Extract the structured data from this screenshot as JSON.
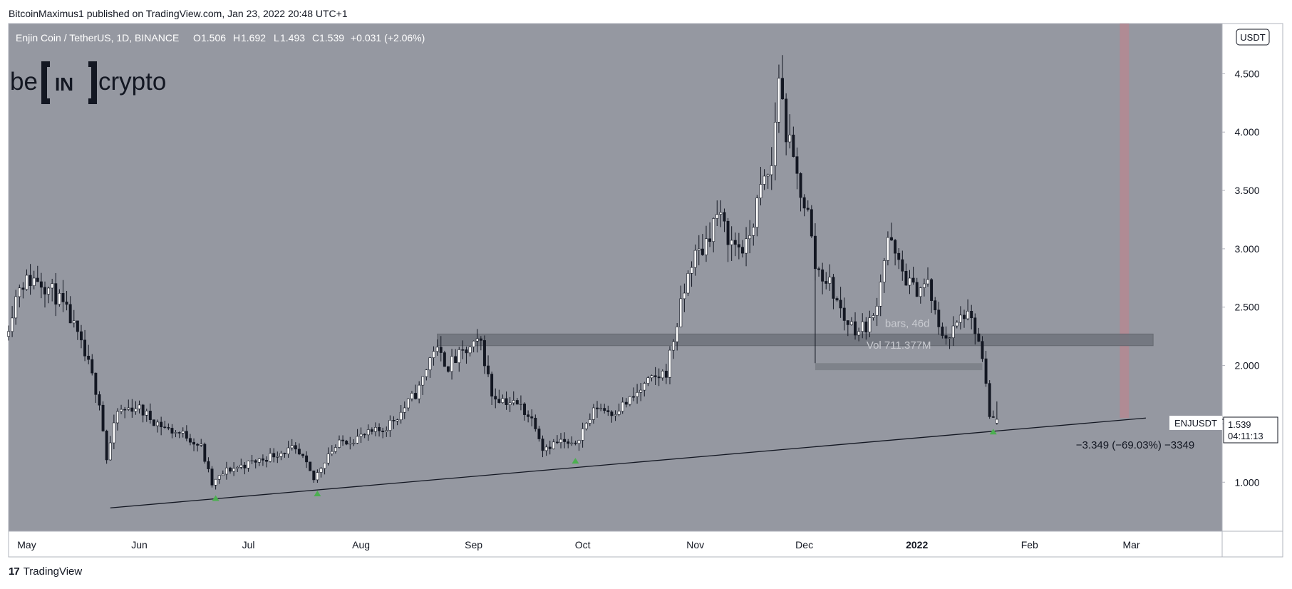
{
  "header": {
    "published_by": "BitcoinMaximus1 published on TradingView.com, Jan 23, 2022 20:48 UTC+1"
  },
  "footer": {
    "brand_icon": "tradingview-icon",
    "brand": "TradingView"
  },
  "colors": {
    "plot_bg": "#9598a1",
    "candle_up": "#ffffff",
    "candle_down": "#131722",
    "wick": "#131722",
    "zone": "#6f737c",
    "target_bar": "#b28a92",
    "marker": "#4caf50"
  },
  "chart_data": {
    "type": "candlestick",
    "symbol_line": "Enjin Coin / TetherUS, 1D, BINANCE",
    "ohlc_readout": {
      "o_label": "O",
      "o": "1.506",
      "h_label": "H",
      "h": "1.692",
      "l_label": "L",
      "l": "1.493",
      "c_label": "C",
      "c": "1.539",
      "change": "+0.031 (+2.06%)"
    },
    "watermark": {
      "left": "be",
      "mid": "IN",
      "right": "crypto"
    },
    "currency_label": "USDT",
    "y_ticks": [
      "1.000",
      "1.500",
      "2.000",
      "2.500",
      "3.000",
      "3.500",
      "4.000",
      "4.500"
    ],
    "y_tick_values": [
      1.0,
      1.5,
      2.0,
      2.5,
      3.0,
      3.5,
      4.0,
      4.5
    ],
    "ylim": [
      0.58,
      4.93
    ],
    "x_ticks": [
      {
        "label": "May",
        "date": "2021-05-01",
        "bold": false
      },
      {
        "label": "Jun",
        "date": "2021-06-01",
        "bold": false
      },
      {
        "label": "Jul",
        "date": "2021-07-01",
        "bold": false
      },
      {
        "label": "Aug",
        "date": "2021-08-01",
        "bold": false
      },
      {
        "label": "Sep",
        "date": "2021-09-01",
        "bold": false
      },
      {
        "label": "Oct",
        "date": "2021-10-01",
        "bold": false
      },
      {
        "label": "Nov",
        "date": "2021-11-01",
        "bold": false
      },
      {
        "label": "Dec",
        "date": "2021-12-01",
        "bold": false
      },
      {
        "label": "2022",
        "date": "2022-01-01",
        "bold": true
      },
      {
        "label": "Feb",
        "date": "2022-02-01",
        "bold": false
      },
      {
        "label": "Mar",
        "date": "2022-03-01",
        "bold": false
      }
    ],
    "xlim": [
      "2021-04-26",
      "2022-03-26"
    ],
    "price_path": [
      [
        "2021-04-26",
        2.25
      ],
      [
        "2021-04-30",
        2.7
      ],
      [
        "2021-05-05",
        2.75
      ],
      [
        "2021-05-10",
        2.6
      ],
      [
        "2021-05-14",
        2.4
      ],
      [
        "2021-05-19",
        2.0
      ],
      [
        "2021-05-22",
        1.7
      ],
      [
        "2021-05-24",
        1.2
      ],
      [
        "2021-05-27",
        1.6
      ],
      [
        "2021-06-01",
        1.65
      ],
      [
        "2021-06-05",
        1.55
      ],
      [
        "2021-06-10",
        1.45
      ],
      [
        "2021-06-15",
        1.4
      ],
      [
        "2021-06-19",
        1.3
      ],
      [
        "2021-06-22",
        0.98
      ],
      [
        "2021-06-26",
        1.1
      ],
      [
        "2021-07-01",
        1.15
      ],
      [
        "2021-07-06",
        1.2
      ],
      [
        "2021-07-10",
        1.25
      ],
      [
        "2021-07-14",
        1.28
      ],
      [
        "2021-07-17",
        1.2
      ],
      [
        "2021-07-20",
        1.02
      ],
      [
        "2021-07-24",
        1.25
      ],
      [
        "2021-07-28",
        1.35
      ],
      [
        "2021-08-03",
        1.4
      ],
      [
        "2021-08-08",
        1.45
      ],
      [
        "2021-08-13",
        1.6
      ],
      [
        "2021-08-18",
        1.8
      ],
      [
        "2021-08-22",
        2.15
      ],
      [
        "2021-08-26",
        2.0
      ],
      [
        "2021-08-30",
        2.1
      ],
      [
        "2021-09-04",
        2.2
      ],
      [
        "2021-09-07",
        1.75
      ],
      [
        "2021-09-11",
        1.7
      ],
      [
        "2021-09-15",
        1.65
      ],
      [
        "2021-09-19",
        1.5
      ],
      [
        "2021-09-21",
        1.3
      ],
      [
        "2021-09-26",
        1.35
      ],
      [
        "2021-09-29",
        1.3
      ],
      [
        "2021-10-02",
        1.45
      ],
      [
        "2021-10-06",
        1.65
      ],
      [
        "2021-10-10",
        1.6
      ],
      [
        "2021-10-15",
        1.7
      ],
      [
        "2021-10-20",
        1.85
      ],
      [
        "2021-10-25",
        1.95
      ],
      [
        "2021-10-29",
        2.5
      ],
      [
        "2021-11-01",
        2.9
      ],
      [
        "2021-11-04",
        3.0
      ],
      [
        "2021-11-08",
        3.3
      ],
      [
        "2021-11-12",
        3.05
      ],
      [
        "2021-11-16",
        3.0
      ],
      [
        "2021-11-20",
        3.5
      ],
      [
        "2021-11-23",
        3.7
      ],
      [
        "2021-11-25",
        4.5
      ],
      [
        "2021-11-27",
        4.0
      ],
      [
        "2021-11-30",
        3.6
      ],
      [
        "2021-12-03",
        3.3
      ],
      [
        "2021-12-05",
        2.85
      ],
      [
        "2021-12-09",
        2.7
      ],
      [
        "2021-12-13",
        2.4
      ],
      [
        "2021-12-17",
        2.3
      ],
      [
        "2021-12-21",
        2.4
      ],
      [
        "2021-12-25",
        3.1
      ],
      [
        "2021-12-28",
        2.85
      ],
      [
        "2022-01-01",
        2.65
      ],
      [
        "2022-01-05",
        2.7
      ],
      [
        "2022-01-08",
        2.3
      ],
      [
        "2022-01-11",
        2.25
      ],
      [
        "2022-01-15",
        2.45
      ],
      [
        "2022-01-18",
        2.3
      ],
      [
        "2022-01-20",
        2.05
      ],
      [
        "2022-01-22",
        1.55
      ],
      [
        "2022-01-23",
        1.54
      ]
    ],
    "last_candle": {
      "open": 1.506,
      "high": 1.692,
      "low": 1.493,
      "close": 1.539
    },
    "support_line": {
      "from": [
        "2021-05-24",
        0.78
      ],
      "to": [
        "2022-03-05",
        1.55
      ]
    },
    "resistance_zone": {
      "from": "2021-08-22",
      "to": "2022-03-07",
      "y_low": 2.17,
      "y_high": 2.27
    },
    "measure_tool": {
      "from": "2021-12-04",
      "to": "2022-01-19",
      "y_low": 1.96,
      "y_high": 2.02,
      "label_bars": "bars, 46d",
      "label_vol": "Vol 711.377M"
    },
    "target_bar": {
      "date": "2022-02-27",
      "y_low": 1.55,
      "y_high": 4.93
    },
    "bottom_markers": [
      "2021-06-22",
      "2021-07-20",
      "2021-09-29",
      "2022-01-22"
    ],
    "annotation": "−3.349 (−69.03%) −3349",
    "symbol_tag": "ENJUSDT",
    "last_price": "1.539",
    "last_price_value": 1.539,
    "countdown": "04:11:13"
  }
}
